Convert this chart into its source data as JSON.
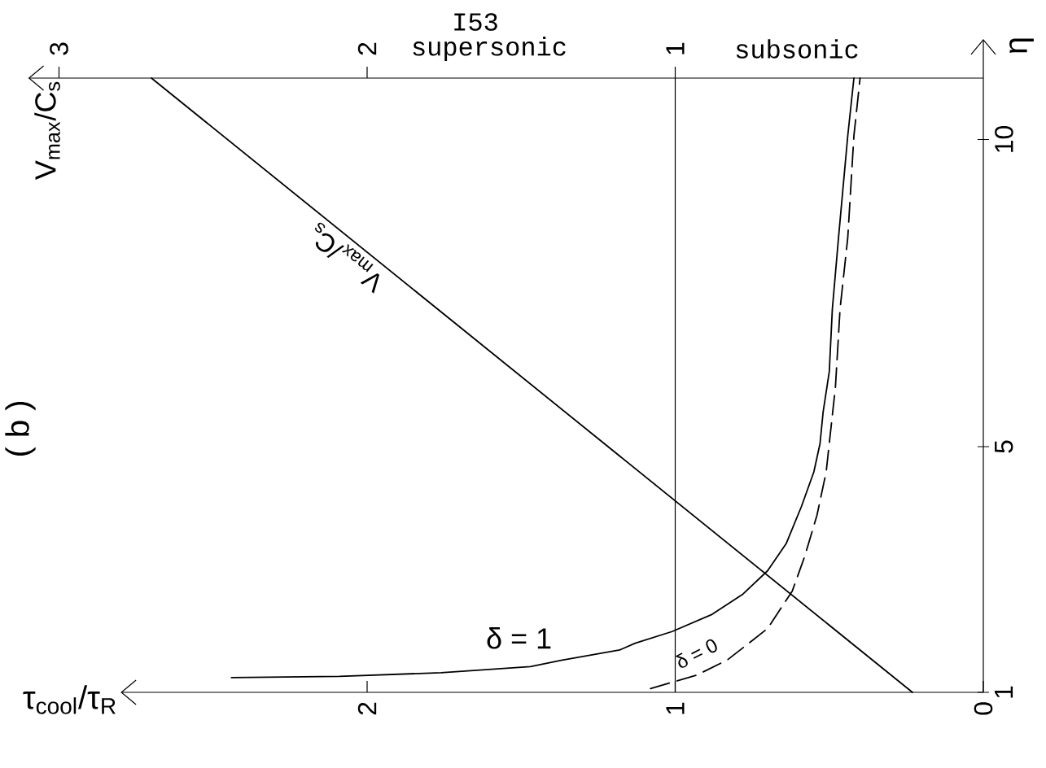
{
  "chart_data": {
    "type": "line",
    "title": "( b )",
    "xlabel": "τ$_{cool}$/τ$_{R}$",
    "x2label": "V$_{max}$/C$_{s}$",
    "ylabel": "η",
    "xlim": [
      2.8,
      0
    ],
    "xticks": [
      0,
      1,
      2
    ],
    "x2lim": [
      3.1,
      0
    ],
    "x2ticks": [
      1,
      2,
      3
    ],
    "ylim": [
      1,
      11
    ],
    "yticks": [
      1,
      5,
      10
    ],
    "series": [
      {
        "name": "V$_{max}$/C$_{s}$",
        "color": "#000000",
        "axis": "x2",
        "line_style": "solid",
        "x": [
          0.23,
          2.7
        ],
        "values": [
          1,
          11
        ]
      },
      {
        "name": "δ = 1",
        "color": "#000000",
        "line_style": "solid",
        "x": [
          2.44,
          2.09,
          1.76,
          1.47,
          1.37,
          1.18,
          1.13,
          1.01,
          0.88,
          0.78,
          0.7,
          0.64,
          0.59,
          0.55,
          0.53,
          0.52,
          0.5,
          0.49,
          0.47,
          0.44,
          0.42
        ],
        "values": [
          1.24,
          1.26,
          1.32,
          1.42,
          1.52,
          1.69,
          1.8,
          1.99,
          2.27,
          2.6,
          2.98,
          3.42,
          4.03,
          4.59,
          5.05,
          5.56,
          6.22,
          7.24,
          8.4,
          10.06,
          11.0
        ]
      },
      {
        "name": "δ = 0",
        "color": "#000000",
        "line_style": "dashed",
        "x": [
          1.08,
          0.93,
          0.83,
          0.7,
          0.62,
          0.58,
          0.54,
          0.51,
          0.5,
          0.48,
          0.465,
          0.44,
          0.42,
          0.4
        ],
        "values": [
          1.06,
          1.28,
          1.53,
          2.04,
          2.65,
          3.21,
          3.88,
          4.59,
          5.05,
          5.97,
          7.24,
          8.4,
          10.06,
          11.0
        ]
      }
    ],
    "ref_lines": [
      {
        "axis": "x",
        "value": 1
      }
    ],
    "annotations": [
      "I53",
      "supersonic",
      "subsonic"
    ]
  }
}
